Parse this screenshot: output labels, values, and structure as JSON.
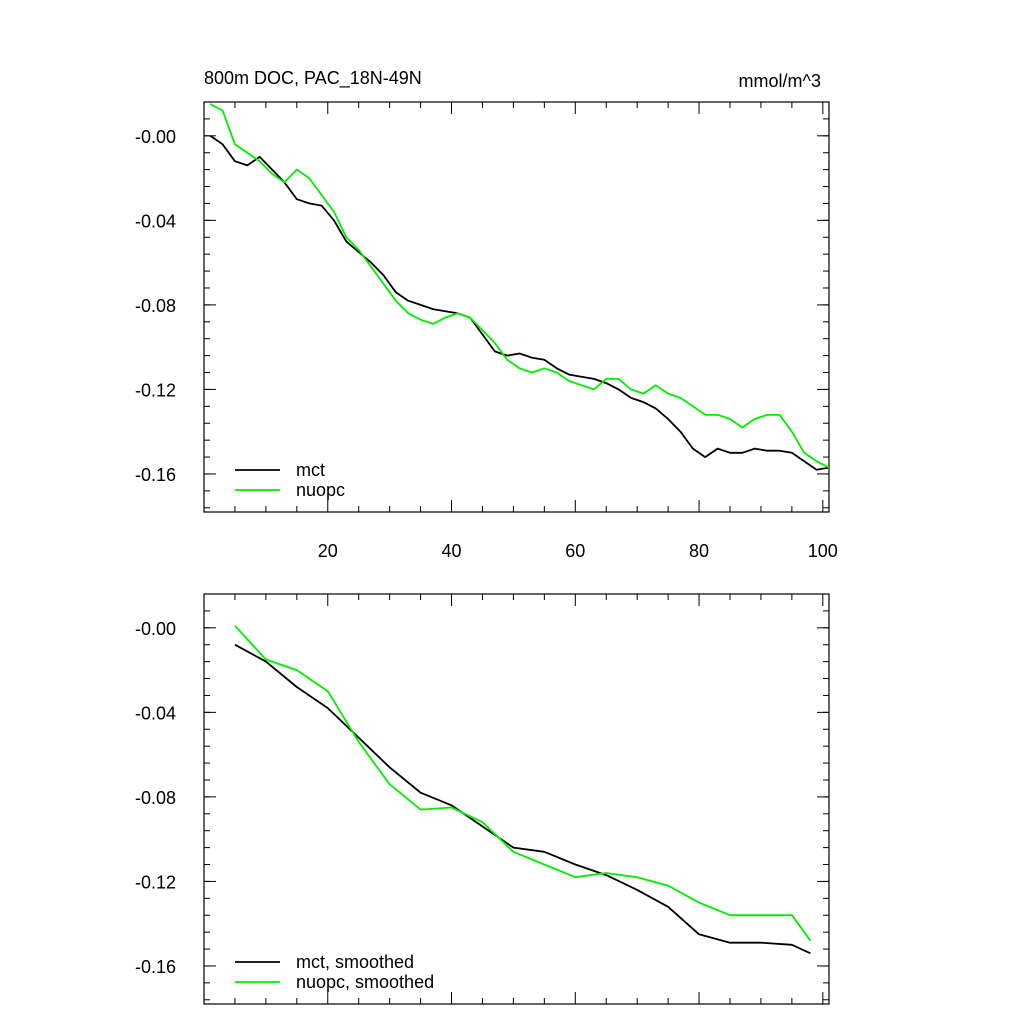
{
  "chart_data": [
    {
      "type": "line",
      "title": "800m DOC, PAC_18N-49N",
      "units": "mmol/m^3",
      "xlabel": "",
      "ylabel": "",
      "xlim": [
        0,
        101
      ],
      "ylim": [
        -0.178,
        0.016
      ],
      "xticks": [
        20,
        40,
        60,
        80,
        100
      ],
      "xtick_labels": [
        "20",
        "40",
        "60",
        "80",
        "100"
      ],
      "yticks": [
        0.0,
        -0.04,
        -0.08,
        -0.12,
        -0.16
      ],
      "ytick_labels": [
        "-0.00",
        "-0.04",
        "-0.08",
        "-0.12",
        "-0.16"
      ],
      "legend_position": "bottom-left",
      "series": [
        {
          "name": "mct",
          "color": "#000000",
          "x": [
            1,
            3,
            5,
            7,
            9,
            11,
            13,
            15,
            17,
            19,
            21,
            23,
            25,
            27,
            29,
            31,
            33,
            35,
            37,
            39,
            41,
            43,
            45,
            47,
            49,
            51,
            53,
            55,
            57,
            59,
            61,
            63,
            65,
            67,
            69,
            71,
            73,
            75,
            77,
            79,
            81,
            83,
            85,
            87,
            89,
            91,
            93,
            95,
            97,
            99,
            101
          ],
          "values": [
            -0.0,
            -0.004,
            -0.012,
            -0.014,
            -0.01,
            -0.016,
            -0.022,
            -0.03,
            -0.032,
            -0.033,
            -0.04,
            -0.05,
            -0.055,
            -0.06,
            -0.066,
            -0.074,
            -0.078,
            -0.08,
            -0.082,
            -0.083,
            -0.084,
            -0.086,
            -0.094,
            -0.102,
            -0.104,
            -0.103,
            -0.105,
            -0.106,
            -0.11,
            -0.113,
            -0.114,
            -0.115,
            -0.117,
            -0.12,
            -0.124,
            -0.126,
            -0.129,
            -0.134,
            -0.14,
            -0.148,
            -0.152,
            -0.148,
            -0.15,
            -0.15,
            -0.148,
            -0.149,
            -0.149,
            -0.15,
            -0.154,
            -0.158,
            -0.157
          ]
        },
        {
          "name": "nuopc",
          "color": "#00ee00",
          "x": [
            1,
            3,
            5,
            7,
            9,
            11,
            13,
            15,
            17,
            19,
            21,
            23,
            25,
            27,
            29,
            31,
            33,
            35,
            37,
            39,
            41,
            43,
            45,
            47,
            49,
            51,
            53,
            55,
            57,
            59,
            61,
            63,
            65,
            67,
            69,
            71,
            73,
            75,
            77,
            79,
            81,
            83,
            85,
            87,
            89,
            91,
            93,
            95,
            97,
            99,
            101
          ],
          "values": [
            0.015,
            0.012,
            -0.004,
            -0.008,
            -0.012,
            -0.018,
            -0.022,
            -0.016,
            -0.02,
            -0.028,
            -0.036,
            -0.048,
            -0.054,
            -0.062,
            -0.07,
            -0.078,
            -0.084,
            -0.087,
            -0.089,
            -0.086,
            -0.084,
            -0.086,
            -0.092,
            -0.098,
            -0.106,
            -0.11,
            -0.112,
            -0.11,
            -0.112,
            -0.116,
            -0.118,
            -0.12,
            -0.115,
            -0.115,
            -0.12,
            -0.122,
            -0.118,
            -0.122,
            -0.124,
            -0.128,
            -0.132,
            -0.132,
            -0.134,
            -0.138,
            -0.134,
            -0.132,
            -0.132,
            -0.14,
            -0.15,
            -0.154,
            -0.157
          ]
        }
      ]
    },
    {
      "type": "line",
      "title": "",
      "xlabel": "",
      "ylabel": "",
      "xlim": [
        0,
        101
      ],
      "ylim": [
        -0.178,
        0.016
      ],
      "xticks": [
        20,
        40,
        60,
        80,
        100
      ],
      "xtick_labels": [],
      "yticks": [
        0.0,
        -0.04,
        -0.08,
        -0.12,
        -0.16
      ],
      "ytick_labels": [
        "-0.00",
        "-0.04",
        "-0.08",
        "-0.12",
        "-0.16"
      ],
      "legend_position": "bottom-left",
      "series": [
        {
          "name": "mct, smoothed",
          "color": "#000000",
          "x": [
            5,
            10,
            15,
            20,
            25,
            30,
            35,
            40,
            45,
            50,
            55,
            60,
            65,
            70,
            75,
            80,
            85,
            90,
            95,
            98
          ],
          "values": [
            -0.008,
            -0.016,
            -0.028,
            -0.038,
            -0.052,
            -0.066,
            -0.078,
            -0.084,
            -0.094,
            -0.104,
            -0.106,
            -0.112,
            -0.117,
            -0.124,
            -0.132,
            -0.145,
            -0.149,
            -0.149,
            -0.15,
            -0.154
          ]
        },
        {
          "name": "nuopc, smoothed",
          "color": "#00ee00",
          "x": [
            5,
            10,
            15,
            20,
            25,
            30,
            35,
            40,
            45,
            50,
            55,
            60,
            65,
            70,
            75,
            80,
            85,
            90,
            95,
            98
          ],
          "values": [
            0.001,
            -0.015,
            -0.02,
            -0.03,
            -0.054,
            -0.074,
            -0.086,
            -0.085,
            -0.092,
            -0.106,
            -0.112,
            -0.118,
            -0.116,
            -0.118,
            -0.122,
            -0.13,
            -0.136,
            -0.136,
            -0.136,
            -0.148
          ]
        }
      ]
    }
  ]
}
